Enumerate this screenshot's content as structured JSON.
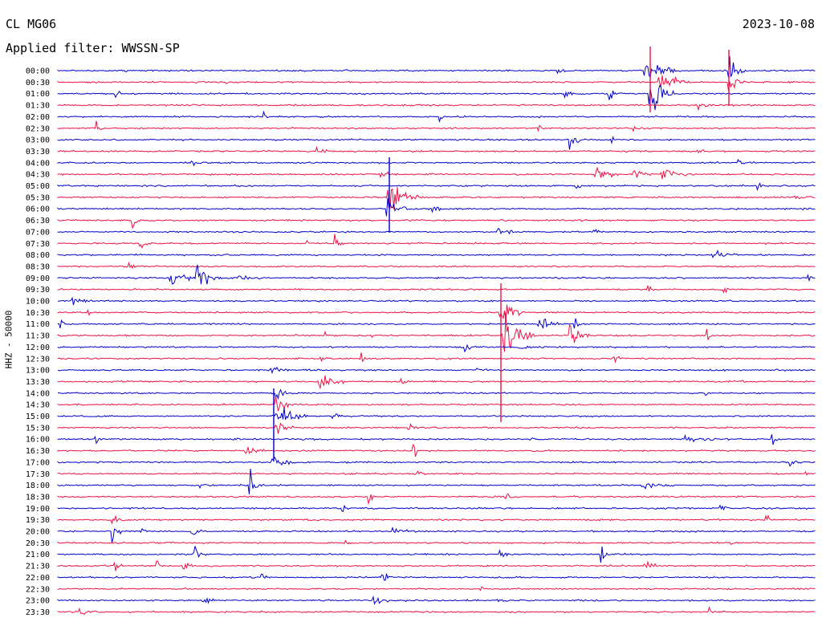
{
  "header": {
    "station": "CL MG06",
    "date": "2023-10-08",
    "filter": "Applied filter: WWSSN-SP"
  },
  "chart_data": {
    "type": "line",
    "title": "CL MG06",
    "date": "2023-10-08",
    "filter": "WWSSN-SP",
    "ylabel": "HHZ - 50000",
    "rows": [
      "00:00",
      "00:30",
      "01:00",
      "01:30",
      "02:00",
      "02:30",
      "03:00",
      "03:30",
      "04:00",
      "04:30",
      "05:00",
      "05:30",
      "06:00",
      "06:30",
      "07:00",
      "07:30",
      "08:00",
      "08:30",
      "09:00",
      "09:30",
      "10:00",
      "10:30",
      "11:00",
      "11:30",
      "12:00",
      "12:30",
      "13:00",
      "13:30",
      "14:00",
      "14:30",
      "15:00",
      "15:30",
      "16:00",
      "16:30",
      "17:00",
      "17:30",
      "18:00",
      "18:30",
      "19:00",
      "19:30",
      "20:00",
      "20:30",
      "21:00",
      "21:30",
      "22:00",
      "22:30",
      "23:00",
      "23:30"
    ],
    "colors": [
      "#0000cc",
      "#ee1144"
    ]
  }
}
